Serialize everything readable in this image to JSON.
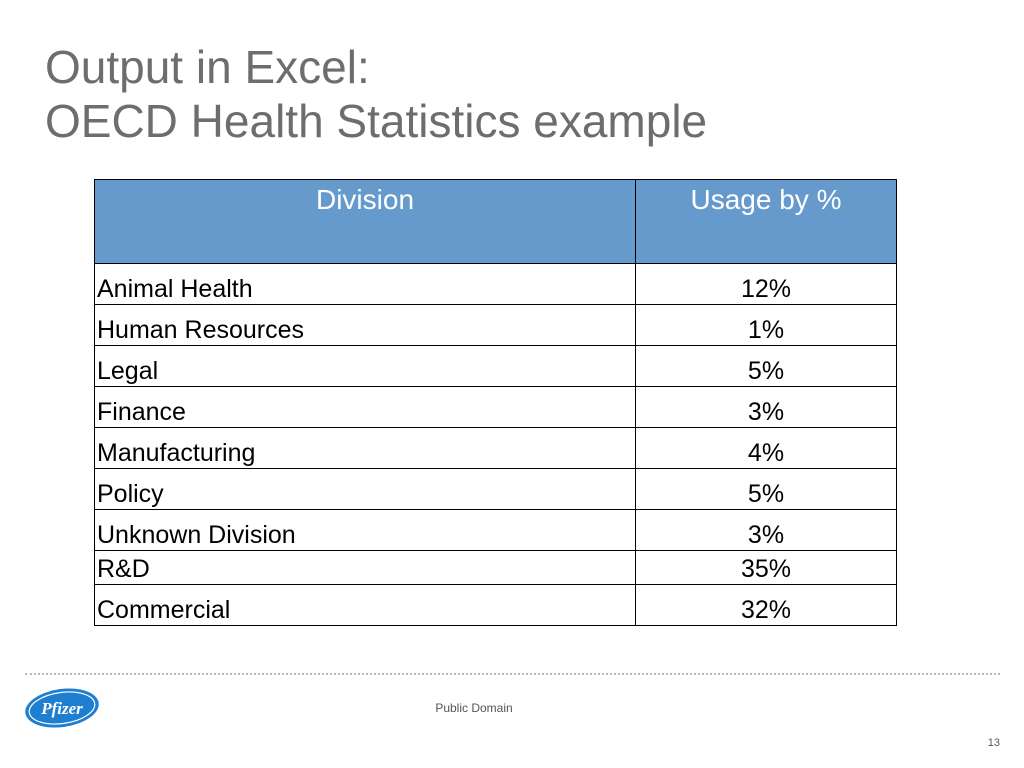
{
  "slide": {
    "title_line1": "Output in Excel:",
    "title_line2": "OECD Health Statistics example"
  },
  "table": {
    "headers": [
      "Division",
      "Usage by %"
    ],
    "rows": [
      {
        "division": "Animal Health",
        "usage": "12%"
      },
      {
        "division": "Human Resources",
        "usage": "1%"
      },
      {
        "division": "Legal",
        "usage": "5%"
      },
      {
        "division": "Finance",
        "usage": "3%"
      },
      {
        "division": "Manufacturing",
        "usage": "4%"
      },
      {
        "division": "Policy",
        "usage": "5%"
      },
      {
        "division": "Unknown Division",
        "usage": "3%"
      },
      {
        "division": "R&D",
        "usage": "35%"
      },
      {
        "division": "Commercial",
        "usage": "32%"
      }
    ],
    "header_color": "#6699cc"
  },
  "footer": {
    "logo_text": "Pfizer",
    "logo_color": "#1e7fd0",
    "center_text": "Public Domain",
    "page_number": "13"
  }
}
